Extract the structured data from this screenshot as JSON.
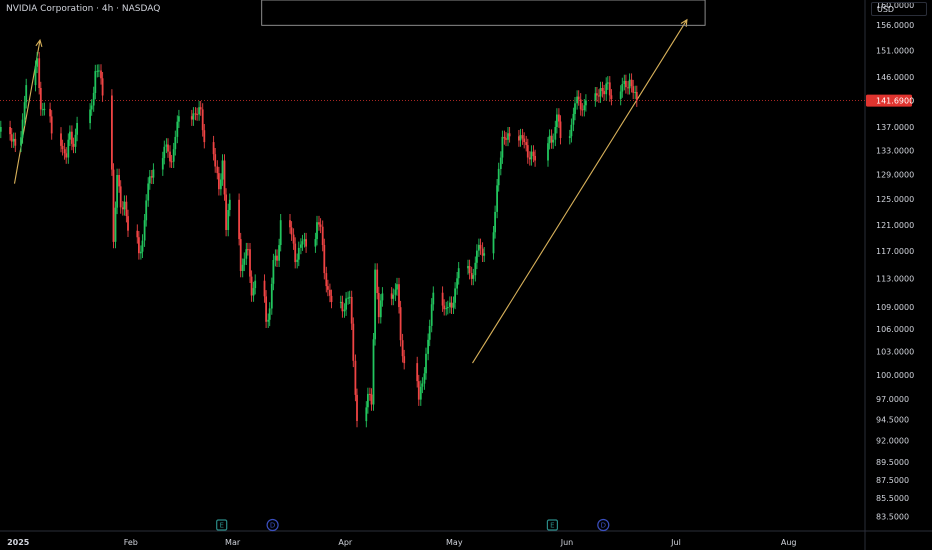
{
  "header": {
    "title": "NVIDIA Corporation · 4h · NASDAQ",
    "currency": "USD"
  },
  "colors": {
    "up": "#22c55e",
    "down": "#ef4444",
    "background": "#000000",
    "arrow": "#d8b15a",
    "price_line": "#e0342f",
    "event_badge": "#2a8a86",
    "div_badge": "#3b4fbf"
  },
  "chart_data": {
    "type": "candlestick",
    "symbol": "NVIDIA Corporation · 4h · NASDAQ",
    "y_scale": "log",
    "ylim": [
      82,
      161
    ],
    "yticks": [
      160,
      156,
      151,
      146,
      141.69,
      137,
      133,
      129,
      125,
      121,
      117,
      113,
      109,
      106,
      103,
      100,
      97,
      94.5,
      92,
      89.5,
      87.5,
      85.5,
      83.5
    ],
    "ytick_labels": [
      "160.0000",
      "156.0000",
      "151.0000",
      "146.0000",
      "141.6900",
      "137.0000",
      "133.0000",
      "129.0000",
      "125.0000",
      "121.0000",
      "117.0000",
      "113.0000",
      "109.0000",
      "106.0000",
      "103.0000",
      "100.0000",
      "97.0000",
      "94.5000",
      "92.0000",
      "89.5000",
      "87.5000",
      "85.5000",
      "83.5000"
    ],
    "xlim": [
      "2024-12-27",
      "2025-08-22"
    ],
    "xticks": [
      {
        "label": "2025",
        "date": "2025-01-01",
        "bold": true
      },
      {
        "label": "Feb",
        "date": "2025-02-01",
        "bold": false
      },
      {
        "label": "Mar",
        "date": "2025-03-01",
        "bold": false
      },
      {
        "label": "Apr",
        "date": "2025-04-01",
        "bold": false
      },
      {
        "label": "May",
        "date": "2025-05-01",
        "bold": false
      },
      {
        "label": "Jun",
        "date": "2025-06-01",
        "bold": false
      },
      {
        "label": "Jul",
        "date": "2025-07-01",
        "bold": false
      },
      {
        "label": "Aug",
        "date": "2025-08-01",
        "bold": false
      }
    ],
    "last_price": {
      "value": 141.69,
      "label": "141.6900"
    },
    "daily_closes": [
      [
        "2024-12-27",
        137.0
      ],
      [
        "2024-12-30",
        134.5
      ],
      [
        "2024-12-31",
        133.8
      ],
      [
        "2025-01-02",
        138.3
      ],
      [
        "2025-01-03",
        144.5
      ],
      [
        "2025-01-06",
        149.5
      ],
      [
        "2025-01-07",
        140.1
      ],
      [
        "2025-01-08",
        140.2
      ],
      [
        "2025-01-10",
        135.9
      ],
      [
        "2025-01-13",
        133.2
      ],
      [
        "2025-01-14",
        131.8
      ],
      [
        "2025-01-15",
        136.2
      ],
      [
        "2025-01-16",
        133.6
      ],
      [
        "2025-01-17",
        137.7
      ],
      [
        "2025-01-21",
        140.8
      ],
      [
        "2025-01-22",
        147.1
      ],
      [
        "2025-01-23",
        147.2
      ],
      [
        "2025-01-24",
        142.6
      ],
      [
        "2025-01-27",
        118.4
      ],
      [
        "2025-01-28",
        128.9
      ],
      [
        "2025-01-29",
        123.7
      ],
      [
        "2025-01-30",
        124.6
      ],
      [
        "2025-01-31",
        120.1
      ],
      [
        "2025-02-03",
        116.7
      ],
      [
        "2025-02-04",
        118.6
      ],
      [
        "2025-02-05",
        124.8
      ],
      [
        "2025-02-06",
        128.7
      ],
      [
        "2025-02-07",
        129.8
      ],
      [
        "2025-02-10",
        133.6
      ],
      [
        "2025-02-11",
        132.8
      ],
      [
        "2025-02-12",
        131.1
      ],
      [
        "2025-02-13",
        135.3
      ],
      [
        "2025-02-14",
        138.9
      ],
      [
        "2025-02-18",
        139.4
      ],
      [
        "2025-02-19",
        139.2
      ],
      [
        "2025-02-20",
        140.1
      ],
      [
        "2025-02-21",
        134.4
      ],
      [
        "2025-02-24",
        130.3
      ],
      [
        "2025-02-25",
        126.6
      ],
      [
        "2025-02-26",
        131.3
      ],
      [
        "2025-02-27",
        120.2
      ],
      [
        "2025-02-28",
        124.9
      ],
      [
        "2025-03-03",
        114.1
      ],
      [
        "2025-03-04",
        115.9
      ],
      [
        "2025-03-05",
        117.3
      ],
      [
        "2025-03-06",
        110.6
      ],
      [
        "2025-03-07",
        112.7
      ],
      [
        "2025-03-10",
        106.98
      ],
      [
        "2025-03-11",
        108.8
      ],
      [
        "2025-03-12",
        115.7
      ],
      [
        "2025-03-13",
        115.6
      ],
      [
        "2025-03-14",
        121.7
      ],
      [
        "2025-03-17",
        119.5
      ],
      [
        "2025-03-18",
        115.4
      ],
      [
        "2025-03-19",
        117.5
      ],
      [
        "2025-03-20",
        118.5
      ],
      [
        "2025-03-21",
        117.7
      ],
      [
        "2025-03-24",
        121.4
      ],
      [
        "2025-03-25",
        120.7
      ],
      [
        "2025-03-26",
        113.8
      ],
      [
        "2025-03-27",
        111.4
      ],
      [
        "2025-03-28",
        109.7
      ],
      [
        "2025-03-31",
        108.4
      ],
      [
        "2025-04-01",
        110.2
      ],
      [
        "2025-04-02",
        110.4
      ],
      [
        "2025-04-03",
        101.8
      ],
      [
        "2025-04-04",
        94.3
      ],
      [
        "2025-04-07",
        97.6
      ],
      [
        "2025-04-08",
        96.3
      ],
      [
        "2025-04-09",
        114.3
      ],
      [
        "2025-04-10",
        107.6
      ],
      [
        "2025-04-11",
        110.9
      ],
      [
        "2025-04-14",
        110.7
      ],
      [
        "2025-04-15",
        112.2
      ],
      [
        "2025-04-16",
        104.5
      ],
      [
        "2025-04-17",
        101.5
      ],
      [
        "2025-04-21",
        96.9
      ],
      [
        "2025-04-22",
        98.9
      ],
      [
        "2025-04-23",
        102.7
      ],
      [
        "2025-04-24",
        106.4
      ],
      [
        "2025-04-25",
        111.0
      ],
      [
        "2025-04-28",
        108.7
      ],
      [
        "2025-04-29",
        109.0
      ],
      [
        "2025-04-30",
        108.9
      ],
      [
        "2025-05-01",
        111.6
      ],
      [
        "2025-05-02",
        114.5
      ],
      [
        "2025-05-05",
        113.8
      ],
      [
        "2025-05-06",
        113.5
      ],
      [
        "2025-05-07",
        117.1
      ],
      [
        "2025-05-08",
        117.4
      ],
      [
        "2025-05-09",
        116.7
      ],
      [
        "2025-05-12",
        123.0
      ],
      [
        "2025-05-13",
        129.9
      ],
      [
        "2025-05-14",
        135.3
      ],
      [
        "2025-05-15",
        134.8
      ],
      [
        "2025-05-16",
        135.4
      ],
      [
        "2025-05-19",
        135.6
      ],
      [
        "2025-05-20",
        134.4
      ],
      [
        "2025-05-21",
        131.8
      ],
      [
        "2025-05-22",
        132.8
      ],
      [
        "2025-05-23",
        131.3
      ],
      [
        "2025-05-27",
        135.5
      ],
      [
        "2025-05-28",
        134.8
      ],
      [
        "2025-05-29",
        139.2
      ],
      [
        "2025-05-30",
        135.1
      ],
      [
        "2025-06-02",
        137.4
      ],
      [
        "2025-06-03",
        141.2
      ],
      [
        "2025-06-04",
        141.9
      ],
      [
        "2025-06-05",
        139.99
      ],
      [
        "2025-06-06",
        141.7
      ],
      [
        "2025-06-09",
        142.6
      ],
      [
        "2025-06-10",
        143.96
      ],
      [
        "2025-06-11",
        142.83
      ],
      [
        "2025-06-12",
        145.0
      ],
      [
        "2025-06-13",
        141.97
      ],
      [
        "2025-06-16",
        144.7
      ],
      [
        "2025-06-17",
        144.1
      ],
      [
        "2025-06-18",
        145.5
      ],
      [
        "2025-06-19",
        143.1
      ],
      [
        "2025-06-20",
        141.69
      ]
    ],
    "annotations": [
      {
        "type": "arrow",
        "from": [
          "2024-12-31",
          127.5
        ],
        "to": [
          "2025-01-07",
          153.0
        ]
      },
      {
        "type": "arrow",
        "from": [
          "2025-05-06",
          101.5
        ],
        "to": [
          "2025-07-04",
          157.0
        ]
      },
      {
        "type": "rectangle",
        "x1": "2025-03-09",
        "x2": "2025-07-09",
        "y1": 155.9,
        "y2": 161.0
      },
      {
        "type": "hline",
        "y": 141.69
      }
    ],
    "events": [
      {
        "date": "2025-02-26",
        "kind": "earnings",
        "glyph": "E"
      },
      {
        "date": "2025-03-12",
        "kind": "dividend",
        "glyph": "D"
      },
      {
        "date": "2025-05-28",
        "kind": "earnings",
        "glyph": "E"
      },
      {
        "date": "2025-06-11",
        "kind": "dividend",
        "glyph": "D"
      }
    ]
  }
}
